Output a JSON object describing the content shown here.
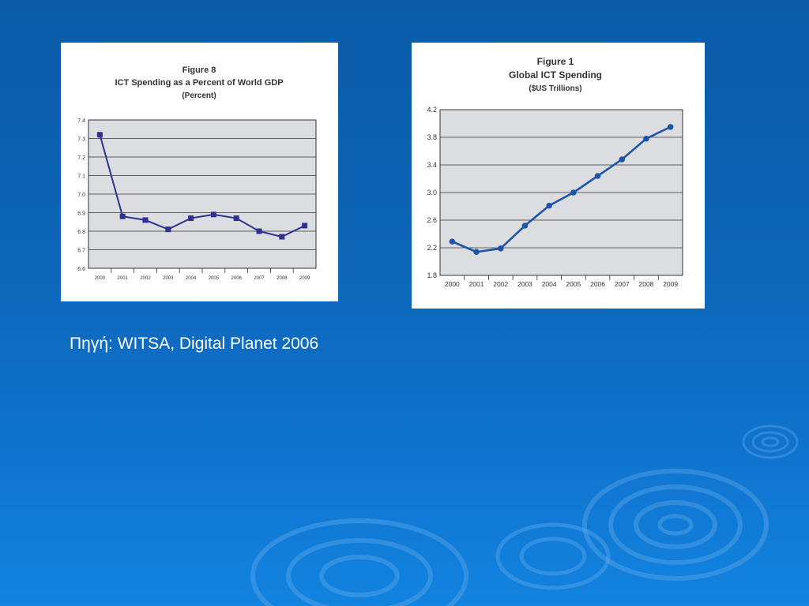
{
  "slide": {
    "source_text": "Πηγή: WITSA, Digital Planet 2006",
    "colors": {
      "accent_left": "#2e3192",
      "accent_right": "#1f55a8",
      "plot_bg": "#dcdde1"
    }
  },
  "chart_data": [
    {
      "type": "line",
      "title": "Figure 8",
      "subtitle": "ICT Spending as a Percent of World GDP",
      "unit": "(Percent)",
      "xlabel": "",
      "ylabel": "",
      "x": [
        "2000",
        "2001",
        "2002",
        "2003",
        "2004",
        "2005",
        "2006",
        "2007",
        "2008",
        "2009"
      ],
      "series": [
        {
          "values": [
            7.32,
            6.88,
            6.86,
            6.81,
            6.87,
            6.89,
            6.87,
            6.8,
            6.77,
            6.83
          ]
        }
      ],
      "ylim": [
        6.6,
        7.4
      ],
      "yticks": [
        "6.6",
        "6.7",
        "6.8",
        "6.9",
        "7.0",
        "7.1",
        "7.2",
        "7.3",
        "7.4"
      ],
      "marker": "square",
      "grid": true
    },
    {
      "type": "line",
      "title": "Figure 1",
      "subtitle": "Global ICT Spending",
      "unit": "($US Trillions)",
      "xlabel": "",
      "ylabel": "",
      "x": [
        "2000",
        "2001",
        "2002",
        "2003",
        "2004",
        "2005",
        "2006",
        "2007",
        "2008",
        "2009"
      ],
      "series": [
        {
          "values": [
            2.29,
            2.14,
            2.19,
            2.52,
            2.81,
            3.0,
            3.24,
            3.48,
            3.78,
            3.95
          ]
        }
      ],
      "ylim": [
        1.8,
        4.2
      ],
      "yticks": [
        "1.8",
        "2.2",
        "2.6",
        "3.0",
        "3.4",
        "3.8",
        "4.2"
      ],
      "marker": "circle",
      "grid": true
    }
  ]
}
